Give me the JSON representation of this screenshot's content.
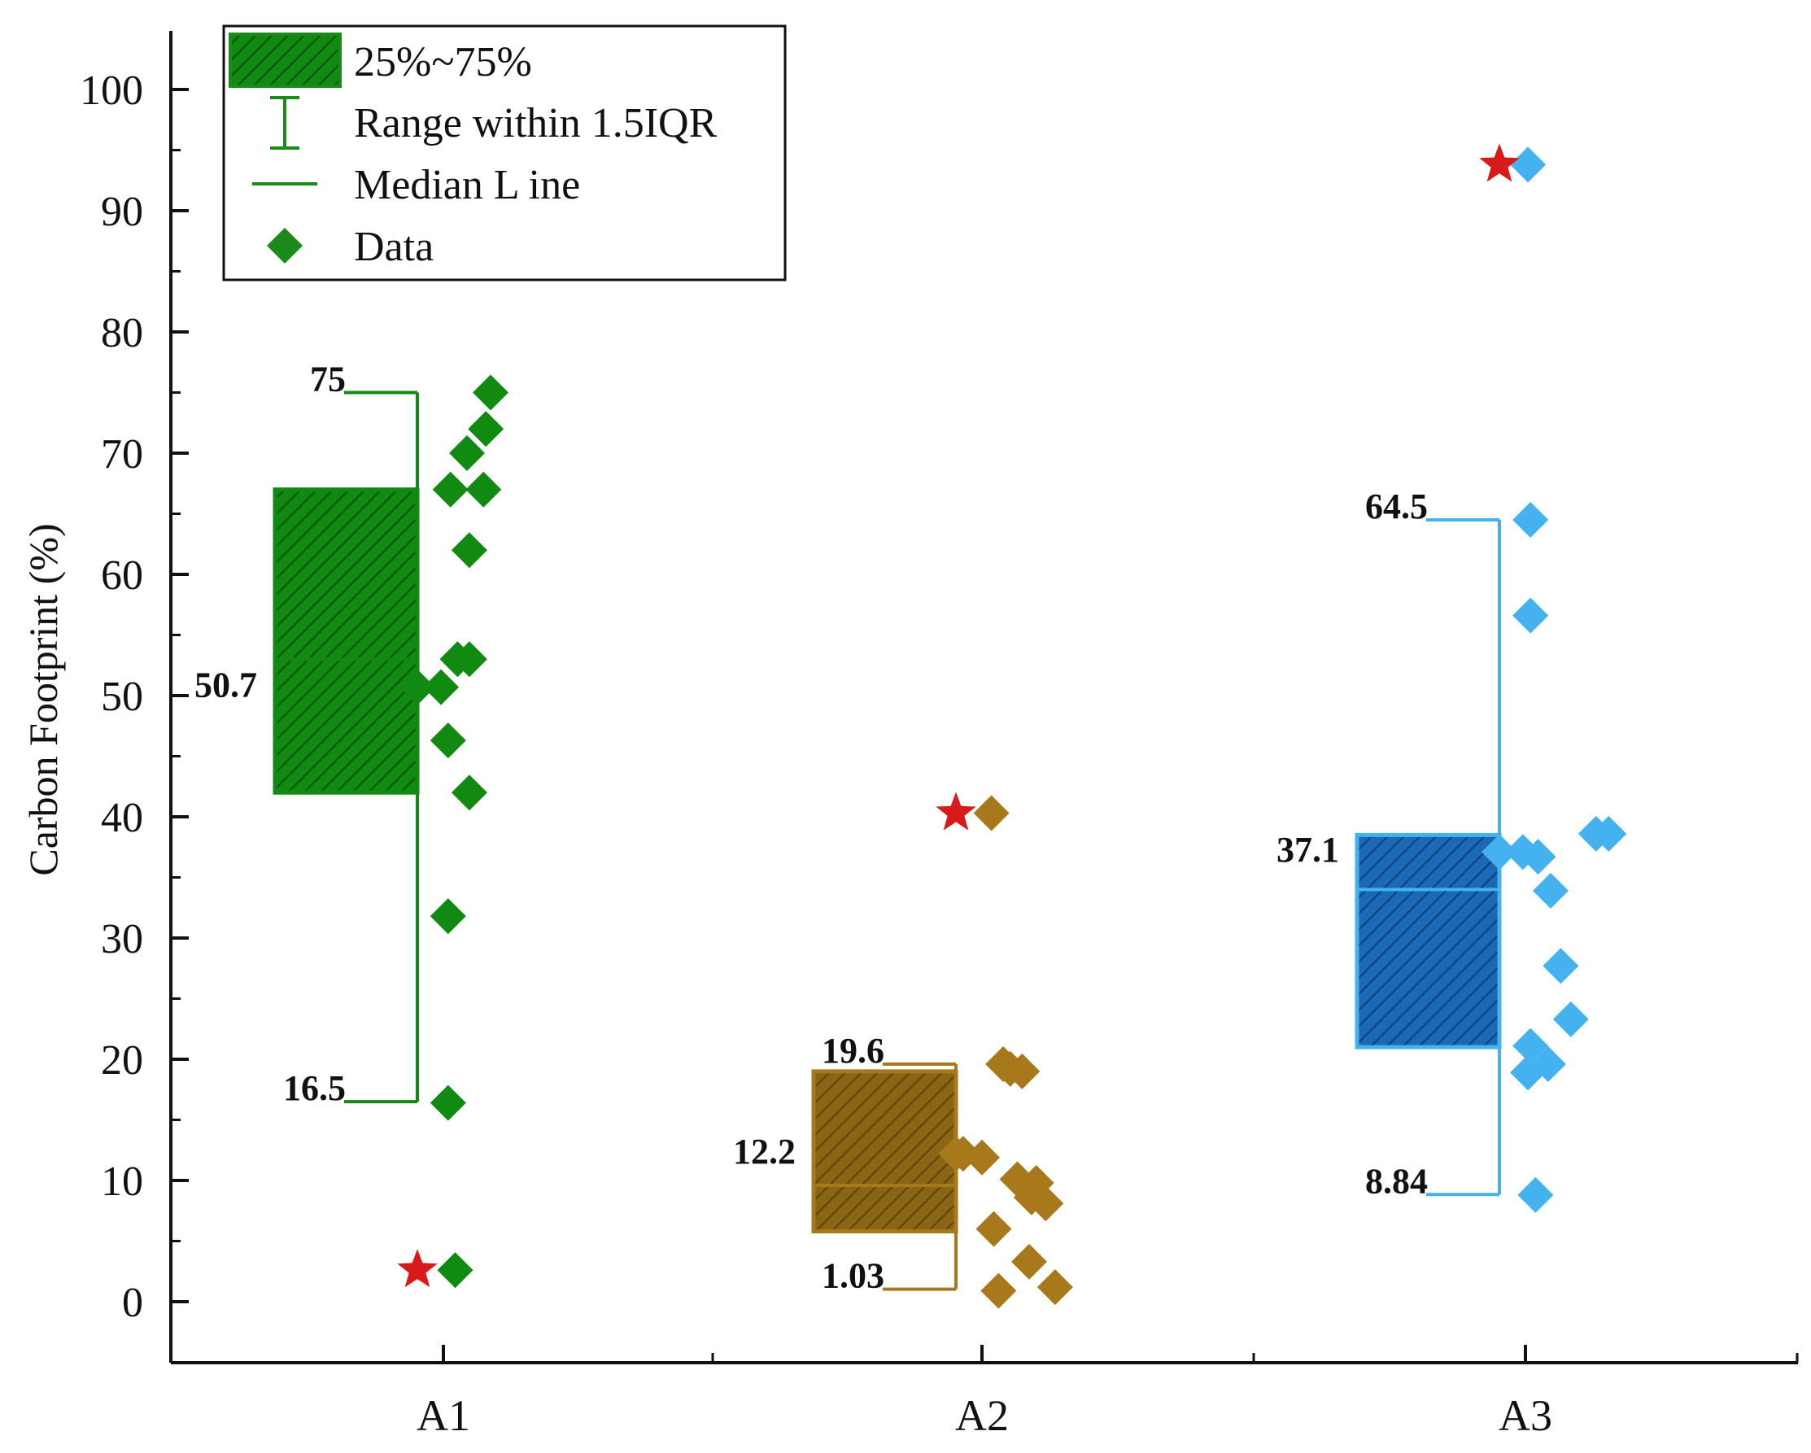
{
  "chart_data": {
    "type": "box",
    "title": "",
    "xlabel": "",
    "ylabel": "Carbon Footprint (%)",
    "ylim": [
      -5,
      105
    ],
    "yticks": [
      0,
      10,
      20,
      30,
      40,
      50,
      60,
      70,
      80,
      90,
      100
    ],
    "categories": [
      "A1",
      "A2",
      "A3"
    ],
    "legend": {
      "position": "top-left",
      "items": [
        {
          "key": "box",
          "label": "25%~75%"
        },
        {
          "key": "whisker",
          "label": "Range within 1.5IQR"
        },
        {
          "key": "median",
          "label": "Median L ine"
        },
        {
          "key": "data",
          "label": "Data"
        }
      ],
      "color": "#1a8a1a"
    },
    "series": [
      {
        "name": "A1",
        "color": "#118a11",
        "dark": "#0d5e0d",
        "q1": 42,
        "q3": 67,
        "median": 53,
        "whisker_low": 16.5,
        "whisker_high": 75,
        "labels": {
          "whisker_high": "75",
          "mean": "50.7",
          "whisker_low": "16.5"
        },
        "label_values": {
          "whisker_high": 75,
          "mean": 50.7,
          "whisker_low": 16.5
        },
        "mean_marker": 50.7,
        "outlier_star": 2.6,
        "points": [
          75,
          72,
          70,
          67,
          67,
          62,
          53,
          53,
          50.7,
          46.3,
          42,
          31.8,
          16.4,
          2.6
        ]
      },
      {
        "name": "A2",
        "color": "#a8791a",
        "dark": "#6e4f10",
        "q1": 5.8,
        "q3": 19,
        "median": 9.6,
        "whisker_low": 1.03,
        "whisker_high": 19.6,
        "labels": {
          "whisker_high": "19.6",
          "mean": "12.2",
          "whisker_low": "1.03"
        },
        "label_values": {
          "whisker_high": 19.6,
          "mean": 12.2,
          "whisker_low": 1.03
        },
        "mean_marker": 12.2,
        "outlier_star": 40.3,
        "points": [
          40.3,
          19.6,
          19.2,
          19,
          12.2,
          11.9,
          10.1,
          9.8,
          8.6,
          8.1,
          6,
          3.3,
          1.2,
          0.9
        ]
      },
      {
        "name": "A3",
        "color": "#43b2ee",
        "dark": "#0b55a0",
        "q1": 21,
        "q3": 38.5,
        "median": 34,
        "whisker_low": 8.84,
        "whisker_high": 64.5,
        "labels": {
          "whisker_high": "64.5",
          "mean": "37.1",
          "whisker_low": "8.84"
        },
        "label_values": {
          "whisker_high": 64.5,
          "mean": 37.1,
          "whisker_low": 8.84
        },
        "mean_marker": 37.1,
        "outlier_star": 93.8,
        "points": [
          93.8,
          64.5,
          56.6,
          38.6,
          38.6,
          37.1,
          36.7,
          33.9,
          27.7,
          23.3,
          21.1,
          19.6,
          18.9,
          8.8
        ]
      }
    ]
  }
}
